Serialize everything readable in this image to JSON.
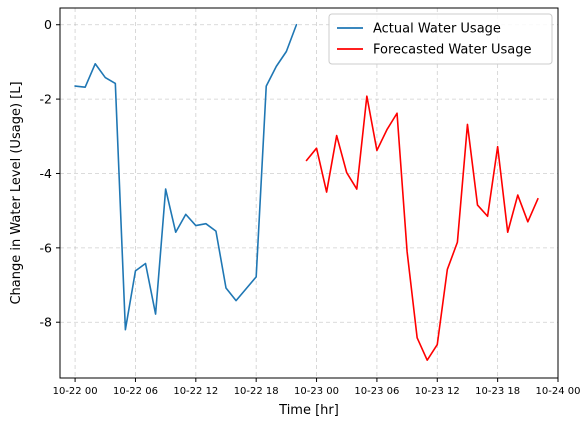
{
  "chart_data": {
    "type": "line",
    "title": "",
    "xlabel": "Time [hr]",
    "ylabel": "Change in Water Level (Usage) [L]",
    "x_axis_type": "datetime (hours)",
    "xlim": [
      "10-21 22:30",
      "10-24 00:00"
    ],
    "ylim": [
      -9.5,
      0.45
    ],
    "x_ticks": [
      {
        "value": "10-22 00",
        "label": "10-22 00"
      },
      {
        "value": "10-22 06",
        "label": "10-22 06"
      },
      {
        "value": "10-22 12",
        "label": "10-22 12"
      },
      {
        "value": "10-22 18",
        "label": "10-22 18"
      },
      {
        "value": "10-23 00",
        "label": "10-23 00"
      },
      {
        "value": "10-23 06",
        "label": "10-23 06"
      },
      {
        "value": "10-23 12",
        "label": "10-23 12"
      },
      {
        "value": "10-23 18",
        "label": "10-23 18"
      },
      {
        "value": "10-24 00",
        "label": "10-24 00"
      }
    ],
    "y_ticks": [
      0,
      -2,
      -4,
      -6,
      -8
    ],
    "grid": true,
    "legend_position": "top-right",
    "series": [
      {
        "name": "Actual Water Usage",
        "color": "#1f77b4",
        "points": [
          {
            "x": "10-22 00:00",
            "y": -1.65
          },
          {
            "x": "10-22 01:00",
            "y": -1.68
          },
          {
            "x": "10-22 02:00",
            "y": -1.05
          },
          {
            "x": "10-22 03:00",
            "y": -1.42
          },
          {
            "x": "10-22 04:00",
            "y": -1.58
          },
          {
            "x": "10-22 05:00",
            "y": -8.2
          },
          {
            "x": "10-22 06:00",
            "y": -6.62
          },
          {
            "x": "10-22 07:00",
            "y": -6.42
          },
          {
            "x": "10-22 08:00",
            "y": -7.78
          },
          {
            "x": "10-22 09:00",
            "y": -4.42
          },
          {
            "x": "10-22 10:00",
            "y": -5.58
          },
          {
            "x": "10-22 11:00",
            "y": -5.1
          },
          {
            "x": "10-22 12:00",
            "y": -5.4
          },
          {
            "x": "10-22 13:00",
            "y": -5.35
          },
          {
            "x": "10-22 14:00",
            "y": -5.55
          },
          {
            "x": "10-22 15:00",
            "y": -7.08
          },
          {
            "x": "10-22 16:00",
            "y": -7.42
          },
          {
            "x": "10-22 17:00",
            "y": -7.1
          },
          {
            "x": "10-22 18:00",
            "y": -6.78
          },
          {
            "x": "10-22 19:00",
            "y": -1.65
          },
          {
            "x": "10-22 20:00",
            "y": -1.12
          },
          {
            "x": "10-22 21:00",
            "y": -0.72
          },
          {
            "x": "10-22 22:00",
            "y": 0.0
          }
        ]
      },
      {
        "name": "Forecasted Water Usage",
        "color": "#ff0000",
        "points": [
          {
            "x": "10-22 23:00",
            "y": -3.65
          },
          {
            "x": "10-23 00:00",
            "y": -3.32
          },
          {
            "x": "10-23 01:00",
            "y": -4.5
          },
          {
            "x": "10-23 02:00",
            "y": -2.98
          },
          {
            "x": "10-23 03:00",
            "y": -3.98
          },
          {
            "x": "10-23 04:00",
            "y": -4.42
          },
          {
            "x": "10-23 05:00",
            "y": -1.92
          },
          {
            "x": "10-23 06:00",
            "y": -3.38
          },
          {
            "x": "10-23 07:00",
            "y": -2.82
          },
          {
            "x": "10-23 08:00",
            "y": -2.38
          },
          {
            "x": "10-23 09:00",
            "y": -6.1
          },
          {
            "x": "10-23 10:00",
            "y": -8.42
          },
          {
            "x": "10-23 11:00",
            "y": -9.02
          },
          {
            "x": "10-23 12:00",
            "y": -8.6
          },
          {
            "x": "10-23 13:00",
            "y": -6.58
          },
          {
            "x": "10-23 14:00",
            "y": -5.85
          },
          {
            "x": "10-23 15:00",
            "y": -2.68
          },
          {
            "x": "10-23 16:00",
            "y": -4.85
          },
          {
            "x": "10-23 17:00",
            "y": -5.15
          },
          {
            "x": "10-23 18:00",
            "y": -3.28
          },
          {
            "x": "10-23 19:00",
            "y": -5.58
          },
          {
            "x": "10-23 20:00",
            "y": -4.58
          },
          {
            "x": "10-23 21:00",
            "y": -5.3
          },
          {
            "x": "10-23 22:00",
            "y": -4.68
          }
        ]
      }
    ]
  }
}
